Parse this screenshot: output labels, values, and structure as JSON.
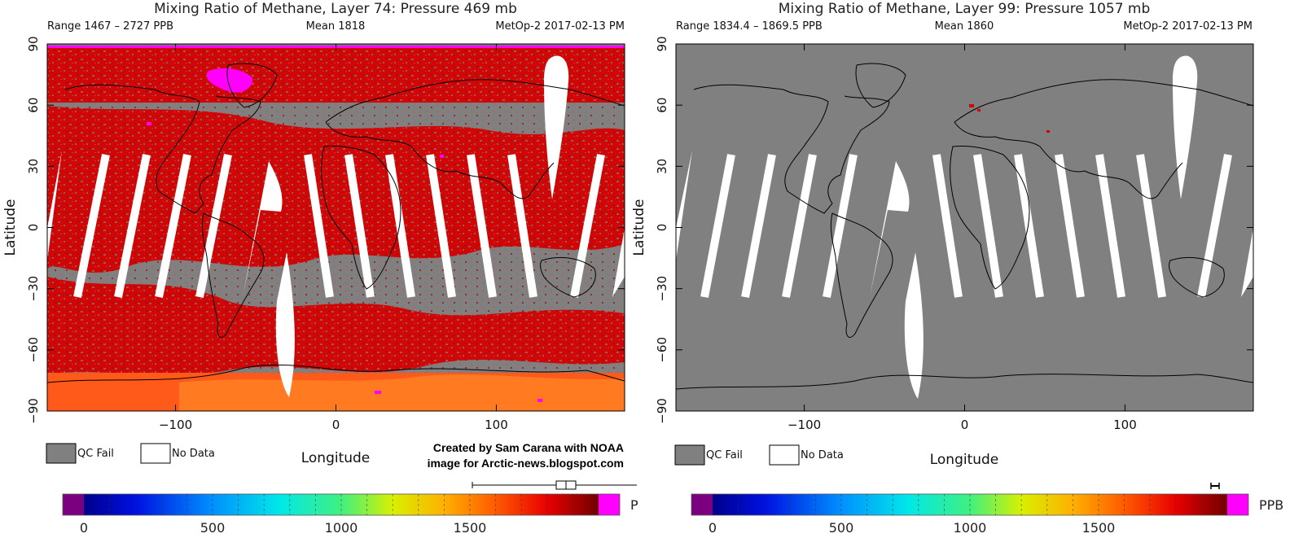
{
  "chart_data": [
    {
      "type": "heatmap",
      "title": "Mixing Ratio of Methane, Layer 74: Pressure 469 mb",
      "range_text": "Range 1467 – 2727 PPB",
      "mean_text": "Mean 1818",
      "satellite_text": "MetOp-2 2017-02-13 PM",
      "xlabel": "Longitude",
      "ylabel": "Latitude",
      "xlim": [
        -180,
        180
      ],
      "ylim": [
        -90,
        90
      ],
      "x_ticks": [
        -100,
        0,
        100
      ],
      "y_ticks": [
        90,
        60,
        30,
        0,
        -30,
        -60,
        -90
      ],
      "y_tick_labels": [
        "90",
        "60",
        "30",
        "0",
        "−30",
        "−60",
        "−90"
      ],
      "x_tick_labels": [
        "−100",
        "0",
        "100"
      ],
      "legend": [
        {
          "label": "QC Fail",
          "color": "#808080"
        },
        {
          "label": "No Data",
          "color": "#ffffff"
        }
      ],
      "colorbar": {
        "ticks": [
          0,
          500,
          1000,
          1500
        ],
        "unit": "P",
        "vmin": 0,
        "vmax": 2000
      }
    },
    {
      "type": "heatmap",
      "title": "Mixing Ratio of Methane, Layer 99: Pressure 1057 mb",
      "range_text": "Range 1834.4 – 1869.5 PPB",
      "mean_text": "Mean 1860",
      "satellite_text": "MetOp-2 2017-02-13 PM",
      "xlabel": "Longitude",
      "ylabel": "Latitude",
      "xlim": [
        -180,
        180
      ],
      "ylim": [
        -90,
        90
      ],
      "x_ticks": [
        -100,
        0,
        100
      ],
      "y_ticks": [
        90,
        60,
        30,
        0,
        -30,
        -60,
        -90
      ],
      "y_tick_labels": [
        "90",
        "60",
        "30",
        "0",
        "−30",
        "−60",
        "−90"
      ],
      "x_tick_labels": [
        "−100",
        "0",
        "100"
      ],
      "legend": [
        {
          "label": "QC Fail",
          "color": "#808080"
        },
        {
          "label": "No Data",
          "color": "#ffffff"
        }
      ],
      "colorbar": {
        "ticks": [
          0,
          500,
          1000,
          1500
        ],
        "unit": "PPB",
        "vmin": 0,
        "vmax": 2000
      }
    }
  ],
  "credit": {
    "line1": "Created by Sam Carana with NOAA",
    "line2": "image for Arctic-news.blogspot.com"
  },
  "colors": {
    "qc_fail": "#808080",
    "no_data": "#ffffff",
    "methane_high": "#d40000",
    "methane_antarctic": "#ff5a1a",
    "outlier": "#ff00ff",
    "coast": "#000000"
  }
}
